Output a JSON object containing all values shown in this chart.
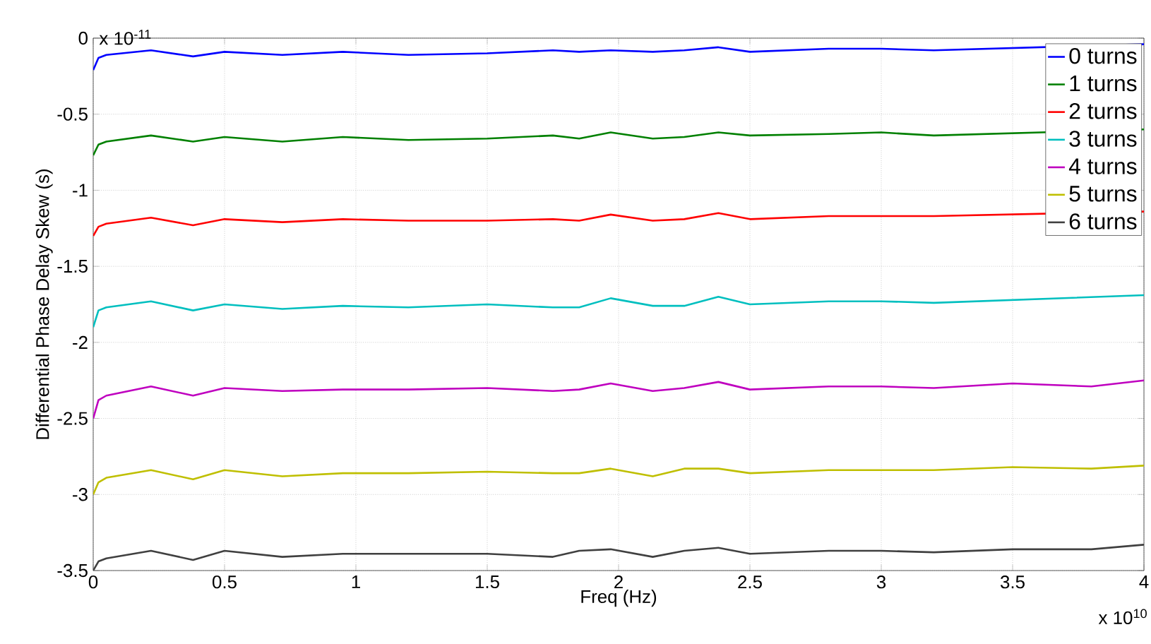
{
  "chart_data": {
    "type": "line",
    "xlabel": "Freq (Hz)",
    "ylabel": "Differential Phase Delay Skew (s)",
    "annotations": [
      "x 10$^{-11}$",
      "x 10$^{10}$"
    ],
    "xlim": [
      0,
      4
    ],
    "ylim": [
      -3.5,
      0
    ],
    "xticks": [
      0,
      0.5,
      1,
      1.5,
      2,
      2.5,
      3,
      3.5,
      4
    ],
    "yticks": [
      -3.5,
      -3,
      -2.5,
      -2,
      -1.5,
      -1,
      -0.5,
      0
    ],
    "grid": true,
    "legend": "top right",
    "x": [
      0,
      0.02,
      0.05,
      0.22,
      0.38,
      0.5,
      0.72,
      0.95,
      1.2,
      1.5,
      1.75,
      1.85,
      1.97,
      2.13,
      2.25,
      2.38,
      2.5,
      2.8,
      3.0,
      3.2,
      3.5,
      3.8,
      4.0
    ],
    "series": [
      {
        "name": "0 turns",
        "color": "#0000ff",
        "values": [
          -0.21,
          -0.13,
          -0.11,
          -0.08,
          -0.12,
          -0.09,
          -0.11,
          -0.09,
          -0.11,
          -0.1,
          -0.08,
          -0.09,
          -0.08,
          -0.09,
          -0.08,
          -0.06,
          -0.09,
          -0.07,
          -0.07,
          -0.08,
          null,
          null,
          -0.04
        ]
      },
      {
        "name": "1 turns",
        "color": "#008000",
        "values": [
          -0.77,
          -0.7,
          -0.68,
          -0.64,
          -0.68,
          -0.65,
          -0.68,
          -0.65,
          -0.67,
          -0.66,
          -0.64,
          -0.66,
          -0.62,
          -0.66,
          -0.65,
          -0.62,
          -0.64,
          -0.63,
          -0.62,
          -0.64,
          null,
          null,
          -0.6
        ]
      },
      {
        "name": "2 turns",
        "color": "#ff0000",
        "values": [
          -1.3,
          -1.24,
          -1.22,
          -1.18,
          -1.23,
          -1.19,
          -1.21,
          -1.19,
          -1.2,
          -1.2,
          -1.19,
          -1.2,
          -1.16,
          -1.2,
          -1.19,
          -1.15,
          -1.19,
          -1.17,
          -1.17,
          -1.17,
          null,
          null,
          -1.14
        ]
      },
      {
        "name": "3 turns",
        "color": "#00bfbf",
        "values": [
          -1.9,
          -1.79,
          -1.77,
          -1.73,
          -1.79,
          -1.75,
          -1.78,
          -1.76,
          -1.77,
          -1.75,
          -1.77,
          -1.77,
          -1.71,
          -1.76,
          -1.76,
          -1.7,
          -1.75,
          -1.73,
          -1.73,
          -1.74,
          null,
          null,
          -1.69
        ]
      },
      {
        "name": "4 turns",
        "color": "#bf00bf",
        "values": [
          -2.5,
          -2.38,
          -2.35,
          -2.29,
          -2.35,
          -2.3,
          -2.32,
          -2.31,
          -2.31,
          -2.3,
          -2.32,
          -2.31,
          -2.27,
          -2.32,
          -2.3,
          -2.26,
          -2.31,
          -2.29,
          -2.29,
          -2.3,
          -2.27,
          -2.29,
          -2.25
        ]
      },
      {
        "name": "5 turns",
        "color": "#bfbf00",
        "values": [
          -3.0,
          -2.92,
          -2.89,
          -2.84,
          -2.9,
          -2.84,
          -2.88,
          -2.86,
          -2.86,
          -2.85,
          -2.86,
          -2.86,
          -2.83,
          -2.88,
          -2.83,
          -2.83,
          -2.86,
          -2.84,
          -2.84,
          -2.84,
          -2.82,
          -2.83,
          -2.81
        ]
      },
      {
        "name": "6 turns",
        "color": "#404040",
        "values": [
          -3.5,
          -3.44,
          -3.42,
          -3.37,
          -3.43,
          -3.37,
          -3.41,
          -3.39,
          -3.39,
          -3.39,
          -3.41,
          -3.37,
          -3.36,
          -3.41,
          -3.37,
          -3.35,
          -3.39,
          -3.37,
          -3.37,
          -3.38,
          -3.36,
          -3.36,
          -3.33
        ]
      }
    ]
  }
}
